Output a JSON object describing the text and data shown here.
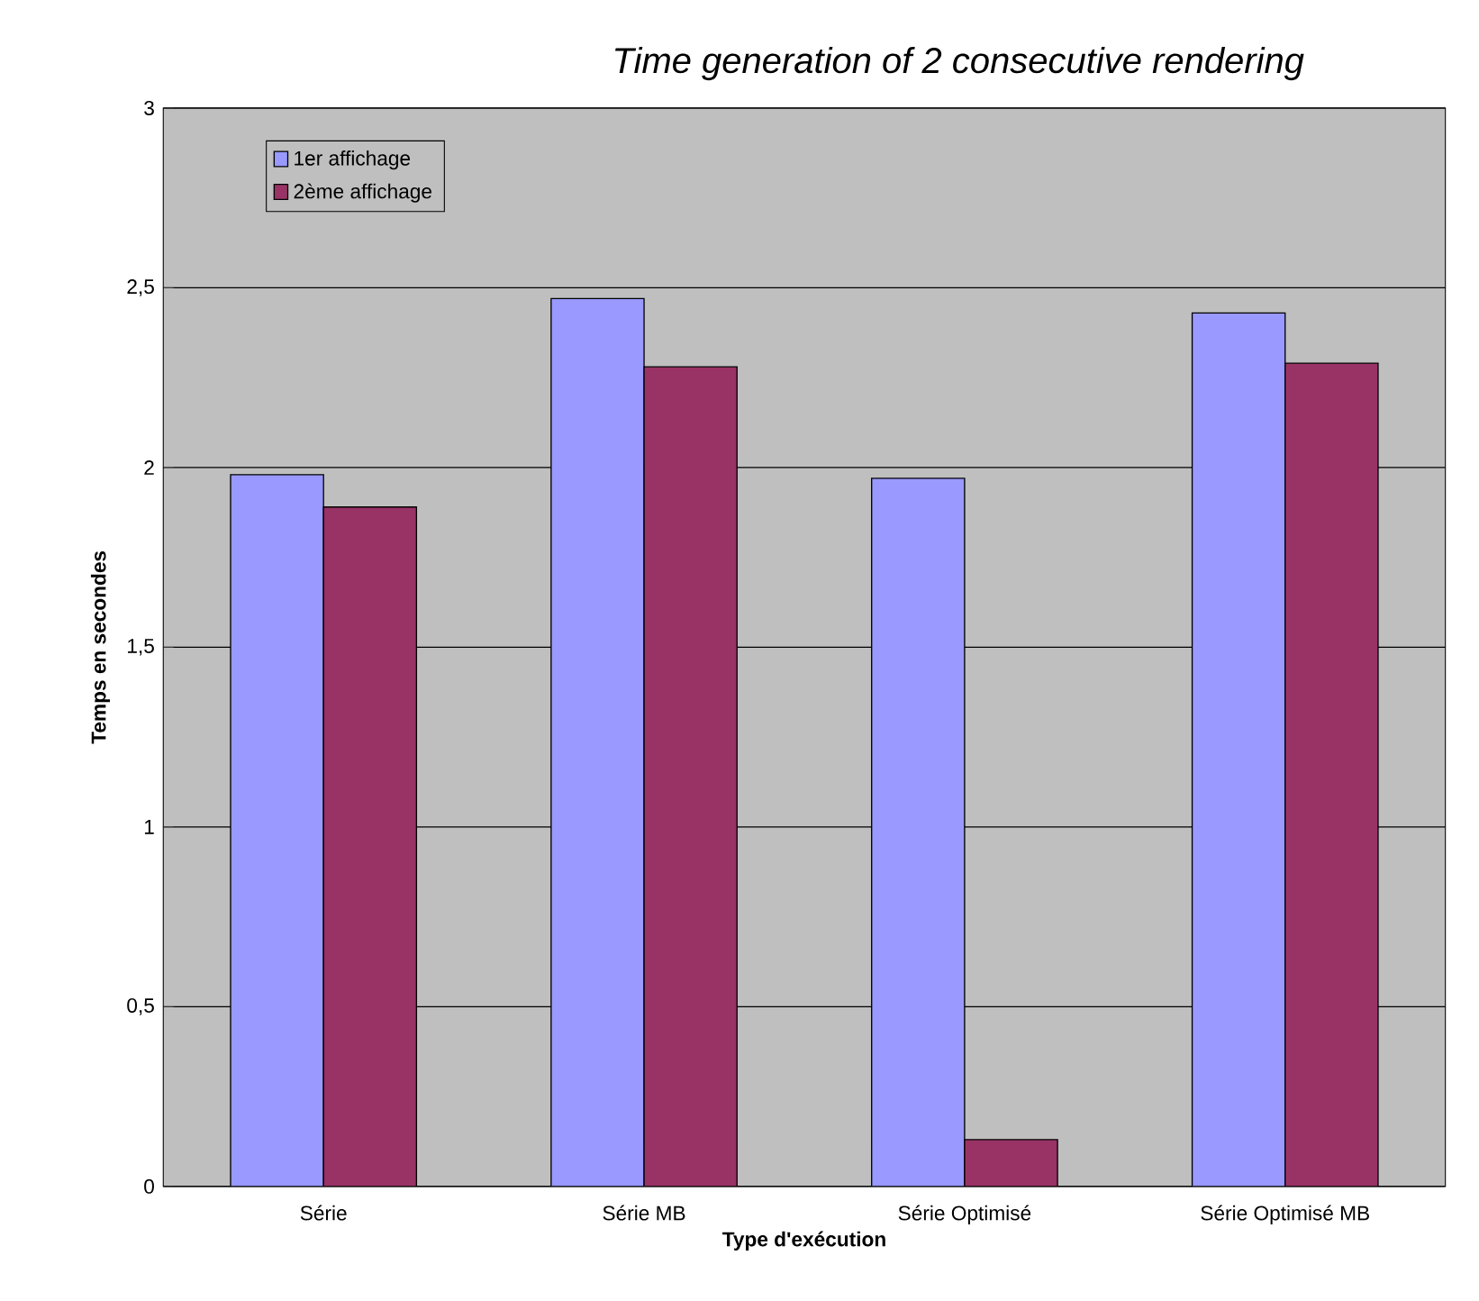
{
  "chart_data": {
    "type": "bar",
    "title": "Time generation of 2 consecutive rendering",
    "xlabel": "Type d'exécution",
    "ylabel": "Temps en secondes",
    "categories": [
      "Série",
      "Série MB",
      "Série Optimisé",
      "Série Optimisé MB"
    ],
    "series": [
      {
        "name": "1er affichage",
        "color": "#9999ff",
        "values": [
          1.98,
          2.47,
          1.97,
          2.43
        ]
      },
      {
        "name": "2ème affichage",
        "color": "#993366",
        "values": [
          1.89,
          2.28,
          0.13,
          2.29
        ]
      }
    ],
    "ylim": [
      0,
      3
    ],
    "yticks": [
      0,
      {
        "value": 0.5,
        "label": "0,5"
      },
      1,
      {
        "value": 1.5,
        "label": "1,5"
      },
      2,
      {
        "value": 2.5,
        "label": "2,5"
      },
      3
    ],
    "grid": "y",
    "legend": "top left"
  }
}
